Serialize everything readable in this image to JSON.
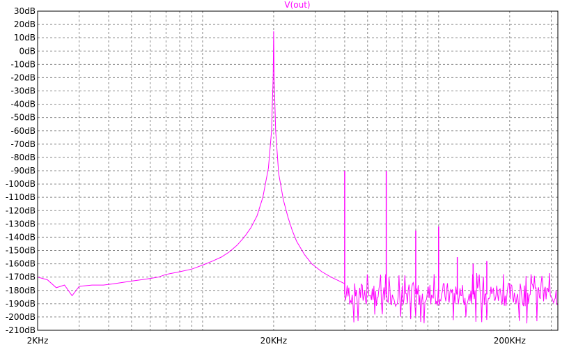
{
  "chart_data": {
    "type": "line",
    "title": "V(out)",
    "x_scale": "log",
    "xlim": [
      2000,
      320000
    ],
    "ylim": [
      -210,
      30
    ],
    "y_ticks": [
      30,
      20,
      10,
      0,
      -10,
      -20,
      -30,
      -40,
      -50,
      -60,
      -70,
      -80,
      -90,
      -100,
      -110,
      -120,
      -130,
      -140,
      -150,
      -160,
      -170,
      -180,
      -190,
      -200,
      -210
    ],
    "y_tick_labels": [
      "30dB",
      "20dB",
      "10dB",
      "0dB",
      "-10dB",
      "-20dB",
      "-30dB",
      "-40dB",
      "-50dB",
      "-60dB",
      "-70dB",
      "-80dB",
      "-90dB",
      "-100dB",
      "-110dB",
      "-120dB",
      "-130dB",
      "-140dB",
      "-150dB",
      "-160dB",
      "-170dB",
      "-180dB",
      "-190dB",
      "-200dB",
      "-210dB"
    ],
    "x_ticks": [
      2000,
      20000,
      200000
    ],
    "x_tick_labels": [
      "2KHz",
      "20KHz",
      "200KHz"
    ],
    "grid": true,
    "series_color": "#ff00ff",
    "baseline_points": [
      [
        2000,
        -170
      ],
      [
        2200,
        -172
      ],
      [
        2400,
        -178
      ],
      [
        2600,
        -176
      ],
      [
        2800,
        -184
      ],
      [
        3000,
        -177
      ],
      [
        3400,
        -176
      ],
      [
        3800,
        -176
      ],
      [
        4200,
        -175
      ],
      [
        4600,
        -174
      ],
      [
        5000,
        -173
      ],
      [
        5500,
        -172
      ],
      [
        6000,
        -171
      ],
      [
        6500,
        -170
      ],
      [
        7000,
        -168
      ],
      [
        7500,
        -167
      ],
      [
        8000,
        -166
      ],
      [
        9000,
        -164
      ],
      [
        10000,
        -161
      ],
      [
        11000,
        -158
      ],
      [
        12000,
        -155
      ],
      [
        13000,
        -151
      ],
      [
        14000,
        -146
      ],
      [
        15000,
        -140
      ],
      [
        16000,
        -133
      ],
      [
        17000,
        -124
      ],
      [
        18000,
        -110
      ],
      [
        19000,
        -88
      ],
      [
        19600,
        -60
      ],
      [
        19900,
        -20
      ],
      [
        20000,
        15
      ],
      [
        20100,
        -20
      ],
      [
        20400,
        -60
      ],
      [
        21000,
        -92
      ],
      [
        22000,
        -112
      ],
      [
        23000,
        -125
      ],
      [
        24000,
        -135
      ],
      [
        25000,
        -143
      ],
      [
        27000,
        -153
      ],
      [
        29000,
        -160
      ],
      [
        32000,
        -166
      ],
      [
        35000,
        -170
      ],
      [
        38000,
        -173
      ],
      [
        40000,
        -175
      ]
    ],
    "spurs": [
      {
        "x": 40000,
        "y": -90
      },
      {
        "x": 60000,
        "y": -90
      },
      {
        "x": 80000,
        "y": -135
      },
      {
        "x": 100000,
        "y": -132
      },
      {
        "x": 120000,
        "y": -155
      },
      {
        "x": 140000,
        "y": -160
      },
      {
        "x": 160000,
        "y": -158
      }
    ],
    "noise_floor": {
      "x_from": 40000,
      "x_to": 320000,
      "y_mean": -183,
      "y_min": -205,
      "y_max": -170
    }
  }
}
